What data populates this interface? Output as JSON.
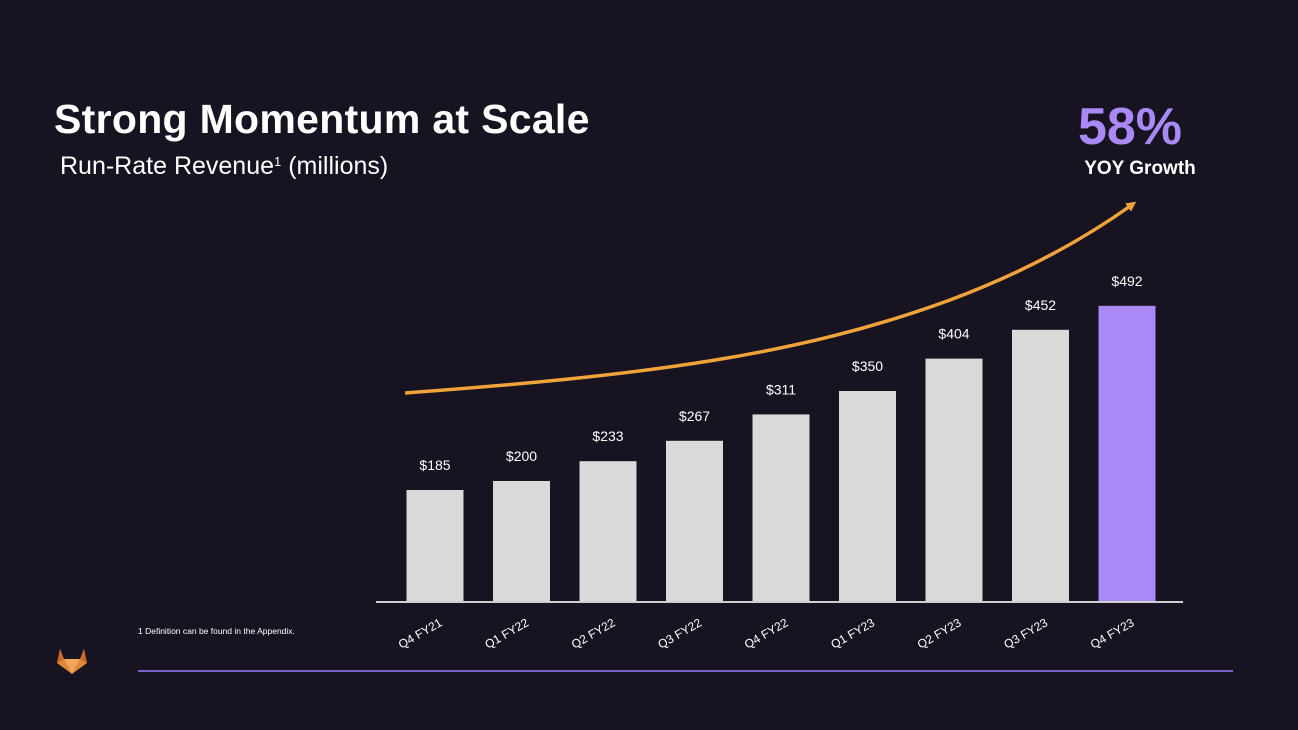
{
  "slide": {
    "title": "Strong Momentum at Scale",
    "subtitle": "Run-Rate Revenue",
    "subtitle_sup": "1",
    "subtitle_suffix": " (millions)",
    "growth_pct": "58%",
    "growth_label": "YOY Growth",
    "footnote": "1  Definition can be found in the Appendix."
  },
  "colors": {
    "background": "#171321",
    "bar": "#d9d9d9",
    "highlight_bar": "#a989f5",
    "arrow": "#f0a33a",
    "footer_line": "#7b60c9",
    "axis": "#cfcfcf",
    "logo": "#e2853b"
  },
  "icons": {
    "logo": "gitlab-logo-icon"
  },
  "chart_data": {
    "type": "bar",
    "categories": [
      "Q4 FY21",
      "Q1 FY22",
      "Q2 FY22",
      "Q3 FY22",
      "Q4 FY22",
      "Q1 FY23",
      "Q2 FY23",
      "Q3 FY23",
      "Q4 FY23"
    ],
    "values": [
      185,
      200,
      233,
      267,
      311,
      350,
      404,
      452,
      492
    ],
    "value_labels": [
      "$185",
      "$200",
      "$233",
      "$267",
      "$311",
      "$350",
      "$404",
      "$452",
      "$492"
    ],
    "highlight_index": 8,
    "ylim": [
      0,
      550
    ],
    "grid": false,
    "legend": "none"
  }
}
